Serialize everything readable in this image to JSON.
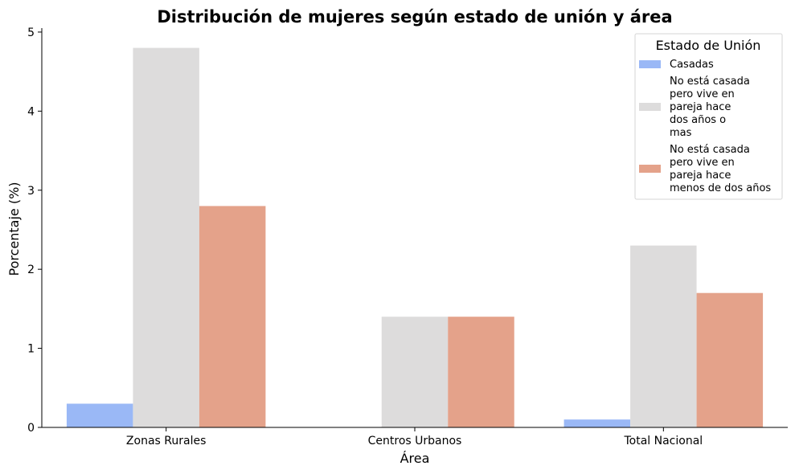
{
  "chart_data": {
    "type": "bar",
    "title": "Distribución de mujeres según estado de unión y área",
    "xlabel": "Área",
    "ylabel": "Porcentaje (%)",
    "categories": [
      "Zonas Rurales",
      "Centros Urbanos",
      "Total Nacional"
    ],
    "ylim": [
      0,
      5.05
    ],
    "yticks": [
      0,
      1,
      2,
      3,
      4,
      5
    ],
    "grid": false,
    "legend": {
      "title": "Estado de Unión",
      "placement": "top-right"
    },
    "series": [
      {
        "name": "Casadas",
        "legend_lines": [
          "Casadas"
        ],
        "color": "#9ab8f6",
        "values": [
          0.3,
          0.0,
          0.1
        ]
      },
      {
        "name": "No está casada pero vive en pareja hace dos años o mas",
        "legend_lines": [
          "No está casada",
          "pero vive en",
          "pareja hace",
          "dos años o",
          "mas"
        ],
        "color": "#dddcdc",
        "values": [
          4.8,
          1.4,
          2.3
        ]
      },
      {
        "name": "No está casada pero vive en pareja hace menos de dos años",
        "legend_lines": [
          "No está casada",
          "pero vive en",
          "pareja hace",
          "menos de dos años"
        ],
        "color": "#e4a28a",
        "values": [
          2.8,
          1.4,
          1.7
        ]
      }
    ]
  }
}
